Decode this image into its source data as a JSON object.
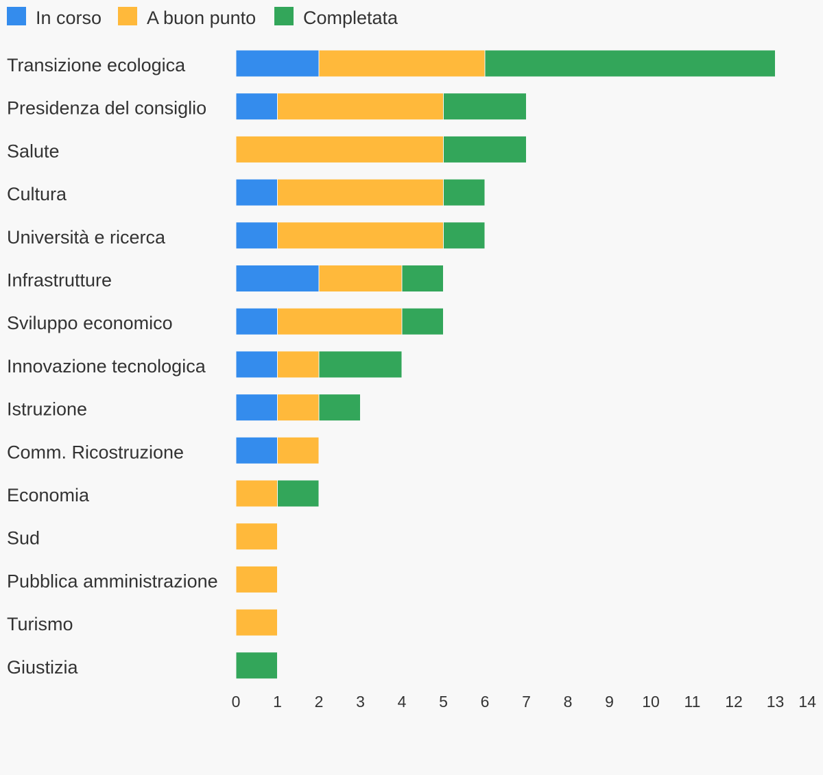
{
  "chart_data": {
    "type": "bar",
    "orientation": "horizontal",
    "stacked": true,
    "legend": "top-left",
    "grid": false,
    "xlim": [
      0,
      14
    ],
    "x_ticks": [
      "0",
      "1",
      "2",
      "3",
      "4",
      "5",
      "6",
      "7",
      "8",
      "9",
      "10",
      "11",
      "12",
      "13",
      "14"
    ],
    "categories": [
      "Transizione ecologica",
      "Presidenza del consiglio",
      "Salute",
      "Cultura",
      "Università e ricerca",
      "Infrastrutture",
      "Sviluppo economico",
      "Innovazione tecnologica",
      "Istruzione",
      "Comm. Ricostruzione",
      "Economia",
      "Sud",
      "Pubblica amministrazione",
      "Turismo",
      "Giustizia"
    ],
    "series": [
      {
        "name": "In corso",
        "color": "#348ced",
        "values": [
          2,
          1,
          0,
          1,
          1,
          2,
          1,
          1,
          1,
          1,
          0,
          0,
          0,
          0,
          0
        ]
      },
      {
        "name": "A buon punto",
        "color": "#ffb93b",
        "values": [
          4,
          4,
          5,
          4,
          4,
          2,
          3,
          1,
          1,
          1,
          1,
          1,
          1,
          1,
          0
        ]
      },
      {
        "name": "Completata",
        "color": "#33a65a",
        "values": [
          7,
          2,
          2,
          1,
          1,
          1,
          1,
          2,
          1,
          0,
          1,
          0,
          0,
          0,
          1
        ]
      }
    ]
  }
}
